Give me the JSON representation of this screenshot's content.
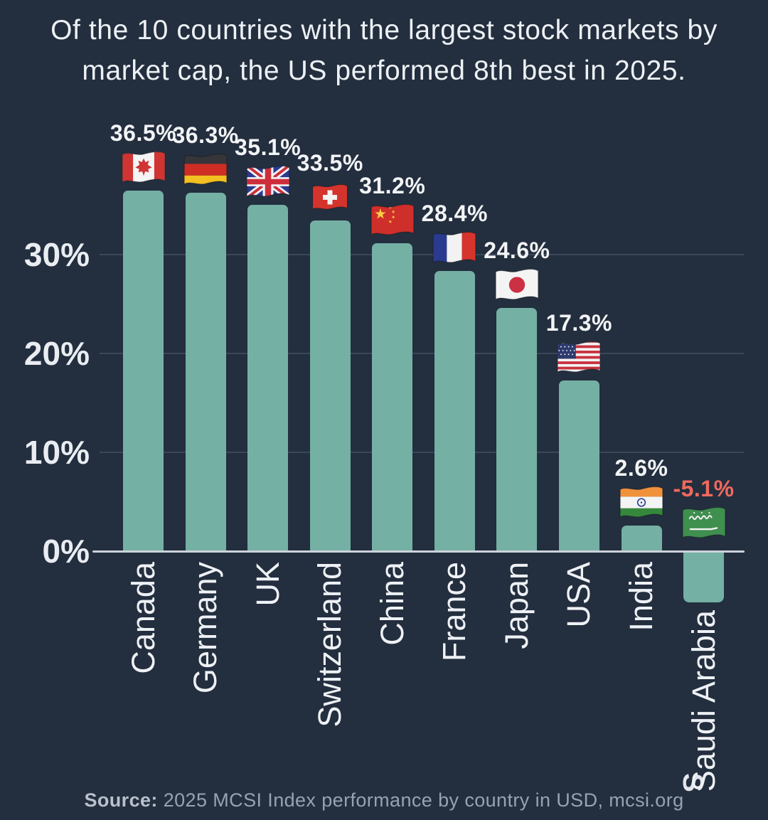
{
  "title": "Of the 10 countries with the largest stock markets by market cap, the US performed 8th best in 2025.",
  "source": {
    "label": "Source:",
    "text": "2025 MCSI Index performance by country in USD, mcsi.org"
  },
  "watermark": "S",
  "colors": {
    "background": "#232e3e",
    "bar": "#74b0a4",
    "text": "#eef1f5",
    "negative_label": "#ef6a5e",
    "axis_line": "#ccd2da",
    "gridline": "#3b4759",
    "source_text": "#99a2b1"
  },
  "chart_data": {
    "type": "bar",
    "title": "Of the 10 countries with the largest stock markets by market cap, the US performed 8th best in 2025.",
    "categories": [
      "Canada",
      "Germany",
      "UK",
      "Switzerland",
      "China",
      "France",
      "Japan",
      "USA",
      "India",
      "Saudi Arabia"
    ],
    "values": [
      36.5,
      36.3,
      35.1,
      33.5,
      31.2,
      28.4,
      24.6,
      17.3,
      2.6,
      -5.1
    ],
    "data_labels": [
      "36.5%",
      "36.3%",
      "35.1%",
      "33.5%",
      "31.2%",
      "28.4%",
      "24.6%",
      "17.3%",
      "2.6%",
      "-5.1%"
    ],
    "flags": [
      "canada",
      "germany",
      "uk",
      "switzerland",
      "china",
      "france",
      "japan",
      "usa",
      "india",
      "saudi-arabia"
    ],
    "xlabel": "",
    "ylabel": "",
    "y_ticks": [
      {
        "label": "30%",
        "value": 30
      },
      {
        "label": "20%",
        "value": 20
      },
      {
        "label": "10%",
        "value": 10
      },
      {
        "label": "0%",
        "value": 0
      }
    ],
    "ylim": [
      -8,
      40
    ],
    "grid": true,
    "legend": false,
    "bar_color": "#74b0a4",
    "negative_label_color": "#ef6a5e"
  }
}
